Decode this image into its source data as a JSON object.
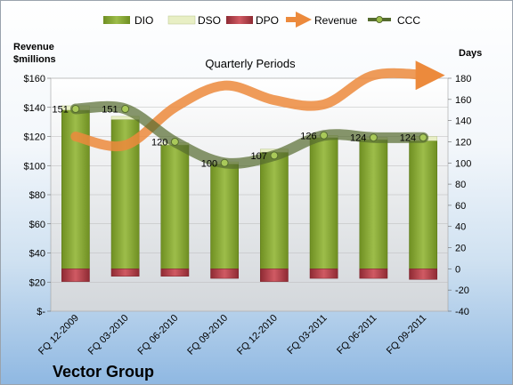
{
  "chart_data": {
    "type": "bar",
    "subtitle": "Quarterly Periods",
    "company": "Vector Group",
    "y_left_label_1": "Revenue",
    "y_left_label_2": "$millions",
    "y_right_label": "Days",
    "categories": [
      "FQ 12-2009",
      "FQ 03-2010",
      "FQ 06-2010",
      "FQ 09-2010",
      "FQ 12-2010",
      "FQ 03-2011",
      "FQ 06-2011",
      "FQ 09-2011"
    ],
    "y_left_ticks": [
      "$-",
      "$20",
      "$40",
      "$60",
      "$80",
      "$100",
      "$120",
      "$140",
      "$160"
    ],
    "y_left_lim": [
      0,
      160
    ],
    "y_right_lim": [
      -40,
      180
    ],
    "y_right_ticks": [
      -40,
      -20,
      0,
      20,
      40,
      60,
      80,
      100,
      120,
      140,
      160,
      180
    ],
    "series": [
      {
        "name": "DIO",
        "axis": "right",
        "color": "#7a9a2a",
        "values": [
          150,
          141,
          117,
          99,
          110,
          124,
          122,
          121
        ]
      },
      {
        "name": "DSO",
        "axis": "right",
        "color": "#e8efc4",
        "values": [
          4,
          3,
          2,
          2,
          3,
          2,
          2,
          4
        ]
      },
      {
        "name": "DPO",
        "axis": "right",
        "color": "#b6404a",
        "values": [
          -12,
          -7,
          -7,
          -9,
          -12,
          -9,
          -9,
          -10
        ]
      },
      {
        "name": "Revenue",
        "axis": "left",
        "color": "#ec8a3c",
        "values": [
          120,
          114,
          140,
          155,
          145,
          142,
          162,
          162
        ]
      },
      {
        "name": "CCC",
        "axis": "right",
        "color": "#556b2f",
        "values": [
          151,
          151,
          120,
          100,
          107,
          126,
          124,
          124
        ]
      }
    ],
    "ccc_labels": [
      "151",
      "151",
      "120",
      "100",
      "107",
      "126",
      "124",
      "124"
    ],
    "grid": true,
    "legend": "top"
  }
}
